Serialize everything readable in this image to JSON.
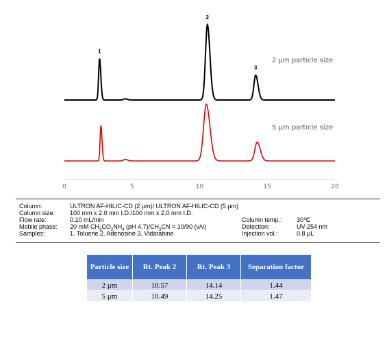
{
  "chart_data": {
    "type": "line",
    "xlim": [
      0,
      20
    ],
    "x_ticks": [
      "0",
      "5",
      "10",
      "15",
      "20"
    ],
    "grid": false,
    "legend": "labels beside traces",
    "series": [
      {
        "name": "2 µm particle size",
        "color": "#000000",
        "peaks": [
          {
            "label": "1",
            "rt": 2.6,
            "height": 0.55
          },
          {
            "label": "",
            "rt": 4.5,
            "height": 0.015
          },
          {
            "label": "2",
            "rt": 10.57,
            "height": 1.0
          },
          {
            "label": "3",
            "rt": 14.14,
            "height": 0.33
          }
        ]
      },
      {
        "name": "5 µm particle size",
        "color": "#e00000",
        "peaks": [
          {
            "label": "",
            "rt": 2.7,
            "height": 0.45
          },
          {
            "label": "",
            "rt": 4.5,
            "height": 0.02
          },
          {
            "label": "",
            "rt": 10.49,
            "height": 0.72
          },
          {
            "label": "",
            "rt": 14.25,
            "height": 0.24
          }
        ]
      }
    ]
  },
  "conditions": {
    "column_label": "Column:",
    "column_value": "ULTRON AF-HILIC-CD (2 µm)/ ULTRON AF-HILIC-CD (5 µm)",
    "size_label": "Column size:",
    "size_value": "100 mm x 2.0 mm I.D./100 mm x 2.0 mm I.D.",
    "flow_label": "Flow rate:",
    "flow_value": "0.10 mL/min",
    "temp_label": "Column temp.:",
    "temp_value": "30℃",
    "mobile_label": "Mobile phase:",
    "mobile_value_a": "20 mM CH",
    "mobile_value_b": "CO",
    "mobile_value_c": "NH",
    "mobile_value_d": " (pH 4.7)/CH",
    "mobile_value_e": "CN = 10/90 (v/v)",
    "mobile_sub_3": "3",
    "mobile_sub_2": "2",
    "mobile_sub_4": "4",
    "detection_label": "Detection:",
    "detection_value": "UV-254 nm",
    "samples_label": "Samples:",
    "samples_value": "1. Toluene  2. Adenosine  3. Vidarabine",
    "injection_label": "Injection vol.:",
    "injection_value": "0.8 μL"
  },
  "table": {
    "headers": [
      "Particle size",
      "Rt. Peak 2",
      "Rt. Peak 3",
      "Separation factor"
    ],
    "rows": [
      [
        "2 μm",
        "10.57",
        "14.14",
        "1.44"
      ],
      [
        "5 μm",
        "10.49",
        "14.25",
        "1.47"
      ]
    ]
  }
}
